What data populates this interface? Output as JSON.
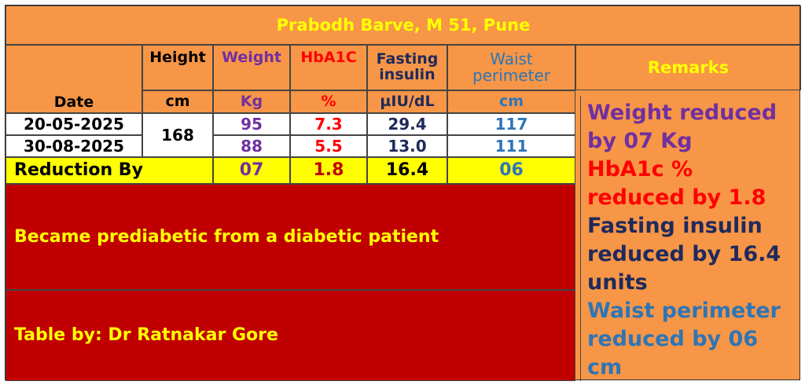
{
  "title": "Prabodh Barve, M 51, Pune",
  "headers": {
    "date": "Date",
    "height": "Height",
    "weight": "Weight",
    "hba1c": "HbA1C",
    "fasting_insulin": "Fasting insulin",
    "waist": "Waist perimeter",
    "remarks": "Remarks"
  },
  "units": {
    "height": "cm",
    "weight": "Kg",
    "hba1c": "%",
    "fasting_insulin": "µIU/dL",
    "waist": "cm"
  },
  "rows": [
    {
      "date": "20-05-2025",
      "weight": "95",
      "hba1c": "7.3",
      "fasting_insulin": "29.4",
      "waist": "117"
    },
    {
      "date": "30-08-2025",
      "weight": "88",
      "hba1c": "5.5",
      "fasting_insulin": "13.0",
      "waist": "111"
    }
  ],
  "height_value": "168",
  "reduction": {
    "label": "Reduction By",
    "weight": "07",
    "hba1c": "1.8",
    "fasting_insulin": "16.4",
    "waist": "06"
  },
  "notes": {
    "status": "Became prediabetic from a diabetic patient",
    "credit": "Table by: Dr Ratnakar Gore"
  },
  "remarks": [
    "Weight reduced by 07 Kg",
    "HbA1c % reduced by 1.8",
    "Fasting insulin reduced by 16.4 units",
    "Waist perimeter reduced by 06 cm"
  ],
  "colors": {
    "background": "#f79646",
    "title": "#ffff00",
    "weight": "#7030a0",
    "hba1c": "#ff0000",
    "fasting_insulin": "#1f2a5c",
    "waist": "#2e75b6",
    "highlight": "#ffff00",
    "banner": "#c00000"
  }
}
